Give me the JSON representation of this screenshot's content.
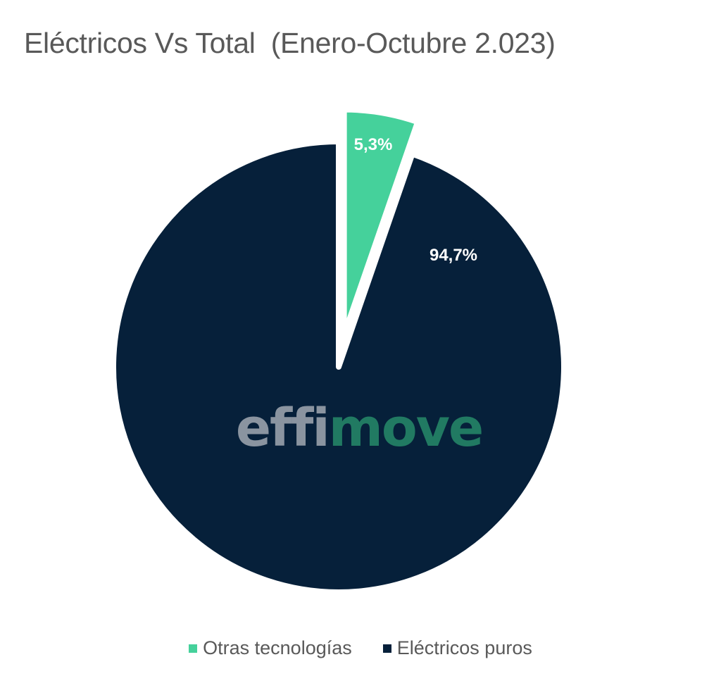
{
  "title": "Eléctricos Vs Total  (Enero-Octubre 2.023)",
  "watermark": {
    "part1": "effi",
    "part2": "move",
    "color1": "#8A94A0",
    "color2": "#217A62"
  },
  "colors": {
    "otras": "#45D19B",
    "electricos": "#06203A",
    "label": "#FFFFFF"
  },
  "legend": [
    {
      "label": "Otras tecnologías",
      "color": "#45D19B"
    },
    {
      "label": "Eléctricos puros",
      "color": "#06203A"
    }
  ],
  "slice_labels": {
    "otras": "5,3%",
    "electricos": "94,7%"
  },
  "chart_data": {
    "type": "pie",
    "title": "Eléctricos Vs Total  (Enero-Octubre 2.023)",
    "categories": [
      "Otras tecnologías",
      "Eléctricos puros"
    ],
    "values": [
      5.3,
      94.7
    ],
    "unit": "%",
    "data_labels": [
      "5,3%",
      "94,7%"
    ],
    "colors": [
      "#45D19B",
      "#06203A"
    ],
    "exploded": [
      "Otras tecnologías"
    ],
    "start_angle_deg": 0,
    "legend_position": "bottom",
    "grid": false
  }
}
